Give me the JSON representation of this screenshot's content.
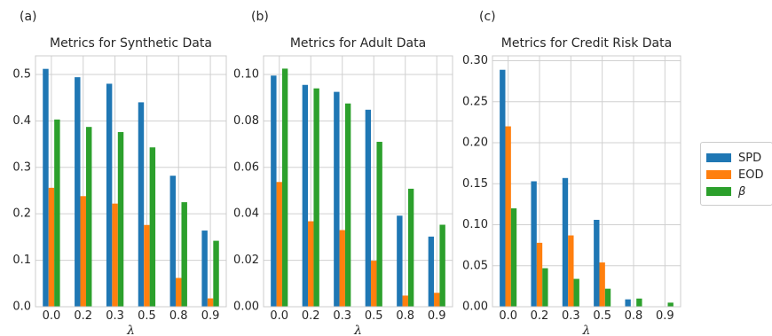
{
  "chart_data": [
    {
      "panel_label": "(a)",
      "type": "bar",
      "title": "Metrics for Synthetic Data",
      "xlabel": "λ",
      "ylabel": "",
      "categories": [
        "0.0",
        "0.2",
        "0.3",
        "0.5",
        "0.8",
        "0.9"
      ],
      "ylim": [
        0,
        0.54
      ],
      "yticks": [
        "0.0",
        "0.1",
        "0.2",
        "0.3",
        "0.4",
        "0.5"
      ],
      "ytick_values": [
        0.0,
        0.1,
        0.2,
        0.3,
        0.4,
        0.5
      ],
      "grid": true,
      "series": [
        {
          "name": "SPD",
          "values": [
            0.512,
            0.494,
            0.48,
            0.44,
            0.282,
            0.164
          ]
        },
        {
          "name": "EOD",
          "values": [
            0.256,
            0.238,
            0.222,
            0.176,
            0.062,
            0.018
          ]
        },
        {
          "name": "β",
          "values": [
            0.403,
            0.387,
            0.376,
            0.343,
            0.225,
            0.142
          ]
        }
      ]
    },
    {
      "panel_label": "(b)",
      "type": "bar",
      "title": "Metrics for Adult Data",
      "xlabel": "λ",
      "ylabel": "",
      "categories": [
        "0.0",
        "0.2",
        "0.3",
        "0.5",
        "0.8",
        "0.9"
      ],
      "ylim": [
        0,
        0.108
      ],
      "yticks": [
        "0.00",
        "0.02",
        "0.04",
        "0.06",
        "0.08",
        "0.10"
      ],
      "ytick_values": [
        0.0,
        0.02,
        0.04,
        0.06,
        0.08,
        0.1
      ],
      "grid": true,
      "series": [
        {
          "name": "SPD",
          "values": [
            0.0995,
            0.0955,
            0.0925,
            0.0848,
            0.0392,
            0.0302
          ]
        },
        {
          "name": "EOD",
          "values": [
            0.0537,
            0.0368,
            0.033,
            0.0198,
            0.0048,
            0.006
          ]
        },
        {
          "name": "β",
          "values": [
            0.1025,
            0.094,
            0.0875,
            0.071,
            0.0508,
            0.0353
          ]
        }
      ]
    },
    {
      "panel_label": "(c)",
      "type": "bar",
      "title": "Metrics for Credit Risk Data",
      "xlabel": "λ",
      "ylabel": "",
      "categories": [
        "0.0",
        "0.2",
        "0.3",
        "0.5",
        "0.8",
        "0.9"
      ],
      "ylim": [
        0,
        0.306
      ],
      "yticks": [
        "0.00",
        "0.05",
        "0.10",
        "0.15",
        "0.20",
        "0.25",
        "0.30"
      ],
      "ytick_values": [
        0.0,
        0.05,
        0.1,
        0.15,
        0.2,
        0.25,
        0.3
      ],
      "grid": true,
      "series": [
        {
          "name": "SPD",
          "values": [
            0.289,
            0.153,
            0.157,
            0.106,
            0.009,
            0.0
          ]
        },
        {
          "name": "EOD",
          "values": [
            0.22,
            0.078,
            0.087,
            0.054,
            0.0,
            0.0
          ]
        },
        {
          "name": "β",
          "values": [
            0.12,
            0.047,
            0.034,
            0.022,
            0.01,
            0.005
          ]
        }
      ]
    }
  ],
  "legend": {
    "position": "right",
    "items": [
      {
        "label": "SPD",
        "color": "#1f77b4"
      },
      {
        "label": "EOD",
        "color": "#ff7f0e"
      },
      {
        "label": "β",
        "color": "#2ca02c"
      }
    ]
  },
  "colors": {
    "SPD": "#1f77b4",
    "EOD": "#ff7f0e",
    "beta": "#2ca02c",
    "grid": "#d0d0d0",
    "axis": "#cccccc",
    "text": "#262626"
  }
}
